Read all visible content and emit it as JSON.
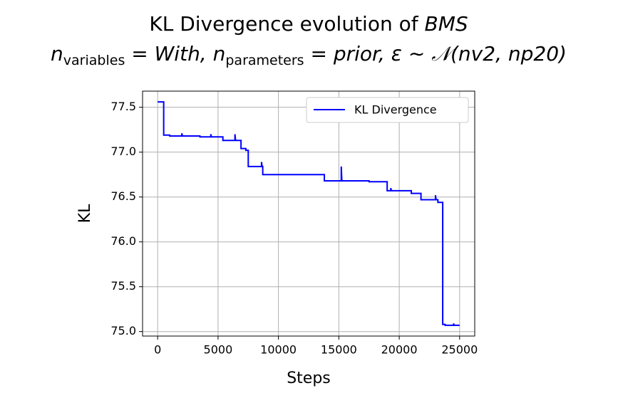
{
  "chart_data": {
    "type": "line",
    "title": "KL Divergence evolution of ",
    "title_italic": "BMS",
    "subtitle_parts": [
      "n",
      "variables",
      " = With, ",
      "n",
      "parameters",
      " = prior, ε ∼ 𝒩(nv2, np20)"
    ],
    "x_label": "Steps",
    "y_label": "KL",
    "xlim": [
      -1250,
      26250
    ],
    "ylim": [
      74.95,
      77.68
    ],
    "xticks": [
      0,
      5000,
      10000,
      15000,
      20000,
      25000
    ],
    "yticks": [
      {
        "value": 75.0,
        "label": "75.0"
      },
      75.5,
      {
        "value": 76.0,
        "label": "76.0"
      },
      76.5,
      {
        "value": 77.0,
        "label": "77.0"
      },
      77.5
    ],
    "grid": true,
    "legend": "upper right",
    "x": [
      0,
      500,
      500,
      1000,
      1000,
      2000,
      2000,
      2050,
      3500,
      3500,
      4400,
      4400,
      4450,
      5400,
      5400,
      6400,
      6400,
      6450,
      6900,
      6900,
      7300,
      7300,
      7500,
      7500,
      8600,
      8600,
      8650,
      8700,
      8700,
      13800,
      13800,
      15200,
      15200,
      15250,
      16800,
      16800,
      17500,
      17500,
      19000,
      19000,
      19300,
      19300,
      19350,
      21000,
      21000,
      21800,
      21800,
      23000,
      23000,
      23050,
      23200,
      23200,
      23600,
      23600,
      23800,
      23800,
      24500,
      24500,
      24550,
      25000
    ],
    "series": [
      {
        "name": "KL Divergence",
        "color": "#0000ff",
        "values": [
          77.56,
          77.56,
          77.19,
          77.19,
          77.18,
          77.18,
          77.21,
          77.18,
          77.18,
          77.17,
          77.17,
          77.2,
          77.17,
          77.17,
          77.13,
          77.13,
          77.2,
          77.13,
          77.13,
          77.04,
          77.04,
          77.02,
          77.02,
          76.84,
          76.84,
          76.89,
          76.84,
          76.84,
          76.75,
          76.75,
          76.68,
          76.68,
          76.84,
          76.68,
          76.68,
          76.68,
          76.68,
          76.67,
          76.67,
          76.57,
          76.57,
          76.6,
          76.57,
          76.57,
          76.54,
          76.54,
          76.47,
          76.47,
          76.52,
          76.47,
          76.47,
          76.44,
          76.44,
          75.08,
          75.08,
          75.07,
          75.07,
          75.09,
          75.07,
          75.07
        ]
      }
    ]
  }
}
